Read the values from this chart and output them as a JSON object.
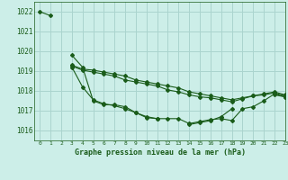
{
  "title": "Graphe pression niveau de la mer (hPa)",
  "bg_color": "#cceee8",
  "grid_color": "#aad4ce",
  "line_color": "#1a5c1a",
  "xlim": [
    -0.5,
    23
  ],
  "ylim": [
    1015.5,
    1022.5
  ],
  "yticks": [
    1016,
    1017,
    1018,
    1019,
    1020,
    1021,
    1022
  ],
  "xticks": [
    0,
    1,
    2,
    3,
    4,
    5,
    6,
    7,
    8,
    9,
    10,
    11,
    12,
    13,
    14,
    15,
    16,
    17,
    18,
    19,
    20,
    21,
    22,
    23
  ],
  "series": [
    [
      1022.0,
      1021.8,
      null,
      1019.8,
      1019.2,
      1017.5,
      1017.3,
      1017.3,
      1017.2,
      1016.9,
      1016.7,
      1016.6,
      null,
      null,
      1016.3,
      1016.4,
      1016.5,
      1016.7,
      1017.1,
      null,
      null,
      null,
      1017.8,
      1017.7
    ],
    [
      null,
      null,
      null,
      1019.2,
      1018.2,
      1017.55,
      1017.35,
      1017.25,
      1017.1,
      1016.9,
      1016.65,
      1016.6,
      1016.6,
      1016.6,
      1016.35,
      1016.45,
      1016.55,
      1016.6,
      1016.5,
      1017.1,
      1017.2,
      1017.5,
      1017.85,
      1017.7
    ],
    [
      null,
      null,
      null,
      1019.25,
      1019.05,
      1018.95,
      1018.85,
      1018.75,
      1018.55,
      1018.45,
      1018.35,
      1018.25,
      1018.05,
      1017.95,
      1017.8,
      1017.7,
      1017.65,
      1017.55,
      1017.45,
      1017.6,
      1017.75,
      1017.8,
      1017.9,
      1017.75
    ],
    [
      null,
      null,
      null,
      1019.3,
      1019.1,
      1019.05,
      1018.95,
      1018.85,
      1018.75,
      1018.55,
      1018.45,
      1018.35,
      1018.25,
      1018.15,
      1017.95,
      1017.85,
      1017.75,
      1017.65,
      1017.55,
      1017.65,
      1017.75,
      1017.85,
      1017.95,
      1017.8
    ]
  ]
}
